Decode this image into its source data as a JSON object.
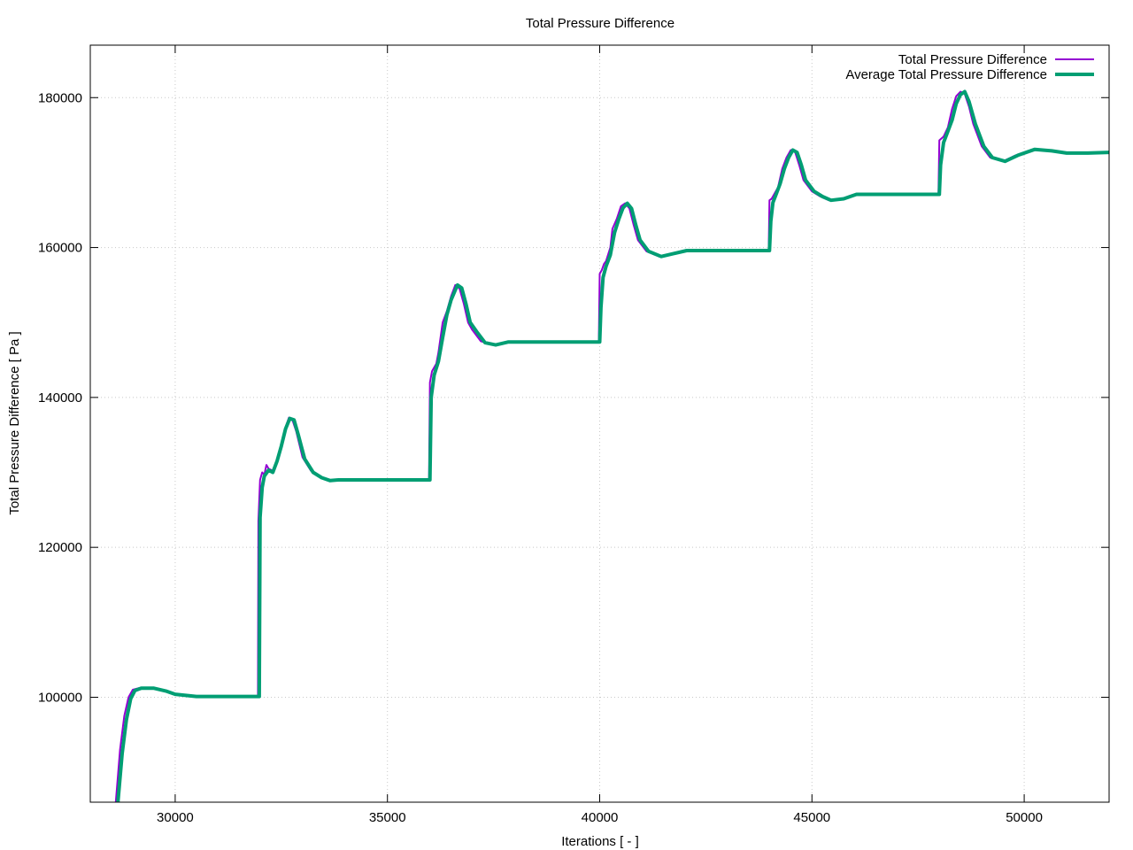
{
  "chart_data": {
    "type": "line",
    "title": "Total Pressure Difference",
    "xlabel": "Iterations [ - ]",
    "ylabel": "Total Pressure Difference [ Pa ]",
    "xlim": [
      28000,
      52000
    ],
    "ylim": [
      86000,
      187000
    ],
    "xticks": [
      30000,
      35000,
      40000,
      45000,
      50000
    ],
    "yticks": [
      100000,
      120000,
      140000,
      160000,
      180000
    ],
    "grid": true,
    "legend_position": "top-right",
    "series": [
      {
        "name": "Total Pressure Difference",
        "color": "#9400d3",
        "points": [
          [
            28600,
            86000
          ],
          [
            28700,
            93000
          ],
          [
            28800,
            97500
          ],
          [
            28900,
            100000
          ],
          [
            29000,
            101000
          ],
          [
            29200,
            101300
          ],
          [
            29500,
            101200
          ],
          [
            29800,
            100800
          ],
          [
            30000,
            100400
          ],
          [
            30500,
            100100
          ],
          [
            31000,
            100100
          ],
          [
            31500,
            100100
          ],
          [
            31950,
            100100
          ],
          [
            31960,
            123500
          ],
          [
            32000,
            129000
          ],
          [
            32050,
            130000
          ],
          [
            32100,
            129700
          ],
          [
            32150,
            131000
          ],
          [
            32200,
            130500
          ],
          [
            32300,
            130200
          ],
          [
            32400,
            131500
          ],
          [
            32500,
            133500
          ],
          [
            32600,
            136000
          ],
          [
            32680,
            137300
          ],
          [
            32750,
            137200
          ],
          [
            32850,
            135500
          ],
          [
            33000,
            132000
          ],
          [
            33200,
            130200
          ],
          [
            33400,
            129500
          ],
          [
            33600,
            128900
          ],
          [
            33800,
            129000
          ],
          [
            34500,
            129000
          ],
          [
            35000,
            129000
          ],
          [
            35980,
            129000
          ],
          [
            36000,
            142000
          ],
          [
            36050,
            143500
          ],
          [
            36100,
            144000
          ],
          [
            36150,
            144500
          ],
          [
            36200,
            146000
          ],
          [
            36300,
            150000
          ],
          [
            36400,
            151500
          ],
          [
            36500,
            153500
          ],
          [
            36600,
            155000
          ],
          [
            36700,
            154500
          ],
          [
            36800,
            152500
          ],
          [
            36900,
            150000
          ],
          [
            37000,
            149000
          ],
          [
            37200,
            147500
          ],
          [
            37500,
            147000
          ],
          [
            37800,
            147400
          ],
          [
            38500,
            147400
          ],
          [
            39500,
            147400
          ],
          [
            39980,
            147400
          ],
          [
            40000,
            156500
          ],
          [
            40050,
            157000
          ],
          [
            40100,
            157800
          ],
          [
            40150,
            158200
          ],
          [
            40250,
            160000
          ],
          [
            40300,
            162500
          ],
          [
            40400,
            163800
          ],
          [
            40500,
            165500
          ],
          [
            40600,
            165900
          ],
          [
            40700,
            165200
          ],
          [
            40800,
            163000
          ],
          [
            40900,
            161000
          ],
          [
            41100,
            159500
          ],
          [
            41400,
            158800
          ],
          [
            41700,
            159200
          ],
          [
            42000,
            159600
          ],
          [
            43000,
            159600
          ],
          [
            43980,
            159600
          ],
          [
            44000,
            166300
          ],
          [
            44050,
            166500
          ],
          [
            44100,
            167000
          ],
          [
            44200,
            168000
          ],
          [
            44300,
            170500
          ],
          [
            44400,
            172000
          ],
          [
            44500,
            173000
          ],
          [
            44600,
            172800
          ],
          [
            44700,
            171000
          ],
          [
            44800,
            169000
          ],
          [
            45000,
            167500
          ],
          [
            45200,
            166800
          ],
          [
            45400,
            166300
          ],
          [
            45700,
            166500
          ],
          [
            46000,
            167100
          ],
          [
            47000,
            167100
          ],
          [
            47980,
            167100
          ],
          [
            48000,
            174300
          ],
          [
            48100,
            174800
          ],
          [
            48200,
            176000
          ],
          [
            48300,
            178500
          ],
          [
            48400,
            180200
          ],
          [
            48500,
            180800
          ],
          [
            48600,
            180500
          ],
          [
            48700,
            178800
          ],
          [
            48800,
            176500
          ],
          [
            49000,
            173500
          ],
          [
            49200,
            172000
          ],
          [
            49500,
            171500
          ],
          [
            49800,
            172300
          ],
          [
            50200,
            173100
          ],
          [
            50600,
            172900
          ],
          [
            51000,
            172600
          ],
          [
            51500,
            172600
          ],
          [
            52000,
            172700
          ]
        ]
      },
      {
        "name": "Average Total Pressure Difference",
        "color": "#009e73",
        "points": [
          [
            28650,
            86000
          ],
          [
            28750,
            92500
          ],
          [
            28850,
            97000
          ],
          [
            28950,
            99800
          ],
          [
            29050,
            100900
          ],
          [
            29200,
            101200
          ],
          [
            29500,
            101200
          ],
          [
            29800,
            100800
          ],
          [
            30000,
            100400
          ],
          [
            30500,
            100100
          ],
          [
            31000,
            100100
          ],
          [
            31500,
            100100
          ],
          [
            31980,
            100100
          ],
          [
            32000,
            124000
          ],
          [
            32050,
            128000
          ],
          [
            32100,
            129500
          ],
          [
            32200,
            130300
          ],
          [
            32300,
            130000
          ],
          [
            32400,
            131500
          ],
          [
            32500,
            133500
          ],
          [
            32600,
            135800
          ],
          [
            32700,
            137200
          ],
          [
            32800,
            137000
          ],
          [
            32900,
            135000
          ],
          [
            33050,
            131800
          ],
          [
            33250,
            130000
          ],
          [
            33450,
            129300
          ],
          [
            33650,
            128900
          ],
          [
            33850,
            129000
          ],
          [
            34500,
            129000
          ],
          [
            35000,
            129000
          ],
          [
            36000,
            129000
          ],
          [
            36030,
            140000
          ],
          [
            36100,
            143000
          ],
          [
            36200,
            144800
          ],
          [
            36300,
            148000
          ],
          [
            36400,
            151000
          ],
          [
            36500,
            153000
          ],
          [
            36650,
            155000
          ],
          [
            36750,
            154600
          ],
          [
            36850,
            152500
          ],
          [
            36950,
            150000
          ],
          [
            37100,
            148800
          ],
          [
            37300,
            147300
          ],
          [
            37550,
            147000
          ],
          [
            37850,
            147400
          ],
          [
            38500,
            147400
          ],
          [
            39500,
            147400
          ],
          [
            40000,
            147400
          ],
          [
            40030,
            152000
          ],
          [
            40080,
            156000
          ],
          [
            40150,
            157500
          ],
          [
            40250,
            159000
          ],
          [
            40350,
            162000
          ],
          [
            40450,
            163800
          ],
          [
            40550,
            165300
          ],
          [
            40650,
            165900
          ],
          [
            40750,
            165200
          ],
          [
            40850,
            163000
          ],
          [
            40950,
            161000
          ],
          [
            41150,
            159500
          ],
          [
            41450,
            158800
          ],
          [
            41750,
            159200
          ],
          [
            42050,
            159600
          ],
          [
            43000,
            159600
          ],
          [
            44000,
            159600
          ],
          [
            44030,
            163500
          ],
          [
            44080,
            166000
          ],
          [
            44150,
            167000
          ],
          [
            44250,
            168500
          ],
          [
            44350,
            170500
          ],
          [
            44450,
            172000
          ],
          [
            44550,
            173000
          ],
          [
            44650,
            172700
          ],
          [
            44750,
            171000
          ],
          [
            44850,
            169000
          ],
          [
            45050,
            167500
          ],
          [
            45250,
            166800
          ],
          [
            45450,
            166300
          ],
          [
            45750,
            166500
          ],
          [
            46050,
            167100
          ],
          [
            47000,
            167100
          ],
          [
            48000,
            167100
          ],
          [
            48030,
            171000
          ],
          [
            48100,
            174000
          ],
          [
            48200,
            175500
          ],
          [
            48300,
            177000
          ],
          [
            48400,
            179200
          ],
          [
            48500,
            180400
          ],
          [
            48600,
            180800
          ],
          [
            48700,
            179500
          ],
          [
            48850,
            176500
          ],
          [
            49050,
            173500
          ],
          [
            49250,
            172000
          ],
          [
            49550,
            171500
          ],
          [
            49850,
            172300
          ],
          [
            50250,
            173100
          ],
          [
            50650,
            172900
          ],
          [
            51000,
            172600
          ],
          [
            51500,
            172600
          ],
          [
            52000,
            172700
          ]
        ]
      }
    ]
  }
}
